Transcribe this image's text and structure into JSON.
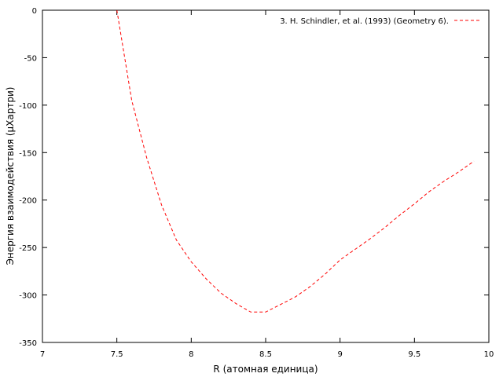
{
  "chart_data": {
    "type": "line",
    "title": "",
    "xlabel": "R (атомная единица)",
    "ylabel": "Энергия взаимодействия (µХартри)",
    "xlim": [
      7,
      10
    ],
    "ylim": [
      -350,
      0
    ],
    "xticks": [
      7,
      7.5,
      8,
      8.5,
      9,
      9.5,
      10
    ],
    "xtick_labels": [
      "7",
      "7.5",
      "8",
      "8.5",
      "9",
      "9.5",
      "10"
    ],
    "yticks": [
      0,
      -50,
      -100,
      -150,
      -200,
      -250,
      -300,
      -350
    ],
    "ytick_labels": [
      "0",
      "-50",
      "-100",
      "-150",
      "-200",
      "-250",
      "-300",
      "-350"
    ],
    "grid": false,
    "legend_position": "top-right",
    "series": [
      {
        "name": "3. H. Schindler, et al. (1993) (Geometry 6).",
        "color": "#ff0000",
        "line_style": "dashed",
        "x": [
          7.5,
          7.6,
          7.7,
          7.8,
          7.9,
          8.0,
          8.1,
          8.2,
          8.3,
          8.4,
          8.5,
          8.6,
          8.7,
          8.8,
          8.9,
          9.0,
          9.1,
          9.2,
          9.3,
          9.4,
          9.5,
          9.6,
          9.7,
          9.8,
          9.9
        ],
        "y": [
          0,
          -95,
          -155,
          -205,
          -242,
          -265,
          -283,
          -298,
          -309,
          -318,
          -318,
          -310,
          -302,
          -291,
          -278,
          -263,
          -252,
          -241,
          -229,
          -216,
          -204,
          -191,
          -180,
          -170,
          -159
        ]
      }
    ]
  }
}
